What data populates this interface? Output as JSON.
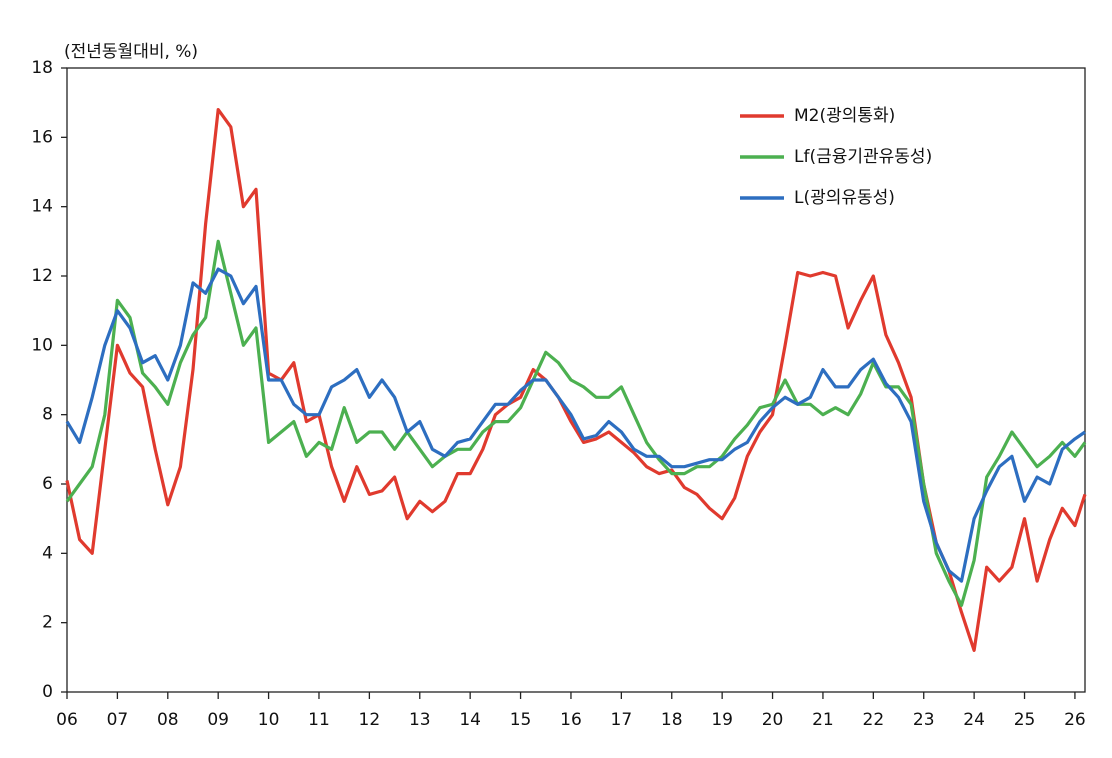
{
  "chart_data": {
    "type": "line",
    "unit_label": "(전년동월대비, %)",
    "x": [
      6,
      6.25,
      6.5,
      6.75,
      7,
      7.25,
      7.5,
      7.75,
      8,
      8.25,
      8.5,
      8.75,
      9,
      9.25,
      9.5,
      9.75,
      10,
      10.25,
      10.5,
      10.75,
      11,
      11.25,
      11.5,
      11.75,
      12,
      12.25,
      12.5,
      12.75,
      13,
      13.25,
      13.5,
      13.75,
      14,
      14.25,
      14.5,
      14.75,
      15,
      15.25,
      15.5,
      15.75,
      16,
      16.25,
      16.5,
      16.75,
      17,
      17.25,
      17.5,
      17.75,
      18,
      18.25,
      18.5,
      18.75,
      19,
      19.25,
      19.5,
      19.75,
      20,
      20.25,
      20.5,
      20.75,
      21,
      21.25,
      21.5,
      21.75,
      22,
      22.25,
      22.5,
      22.75,
      23,
      23.25,
      23.5,
      23.75,
      24,
      24.25,
      24.5,
      24.75,
      25,
      25.25,
      25.5,
      25.75,
      26,
      26.2
    ],
    "series": [
      {
        "name": "M2(광의통화)",
        "color": "#e03a2e",
        "values": [
          6.1,
          4.4,
          4.0,
          7.0,
          10.0,
          9.2,
          8.8,
          7.0,
          5.4,
          6.5,
          9.3,
          13.5,
          16.8,
          16.3,
          14.0,
          14.5,
          9.2,
          9.0,
          9.5,
          7.8,
          8.0,
          6.5,
          5.5,
          6.5,
          5.7,
          5.8,
          6.2,
          5.0,
          5.5,
          5.2,
          5.5,
          6.3,
          6.3,
          7.0,
          8.0,
          8.3,
          8.5,
          9.3,
          9.0,
          8.5,
          7.8,
          7.2,
          7.3,
          7.5,
          7.2,
          6.9,
          6.5,
          6.3,
          6.4,
          5.9,
          5.7,
          5.3,
          5.0,
          5.6,
          6.8,
          7.5,
          8.0,
          10.0,
          12.1,
          12.0,
          12.1,
          12.0,
          10.5,
          11.3,
          12.0,
          10.3,
          9.5,
          8.5,
          6.0,
          4.3,
          3.5,
          2.3,
          1.2,
          3.6,
          3.2,
          3.6,
          5.0,
          3.2,
          4.4,
          5.3,
          4.8,
          5.7
        ]
      },
      {
        "name": "Lf(금융기관유동성)",
        "color": "#4cb050",
        "values": [
          5.5,
          6.0,
          6.5,
          8.0,
          11.3,
          10.8,
          9.2,
          8.8,
          8.3,
          9.5,
          10.3,
          10.8,
          13.0,
          11.5,
          10.0,
          10.5,
          7.2,
          7.5,
          7.8,
          6.8,
          7.2,
          7.0,
          8.2,
          7.2,
          7.5,
          7.5,
          7.0,
          7.5,
          7.0,
          6.5,
          6.8,
          7.0,
          7.0,
          7.5,
          7.8,
          7.8,
          8.2,
          9.0,
          9.8,
          9.5,
          9.0,
          8.8,
          8.5,
          8.5,
          8.8,
          8.0,
          7.2,
          6.7,
          6.3,
          6.3,
          6.5,
          6.5,
          6.8,
          7.3,
          7.7,
          8.2,
          8.3,
          9.0,
          8.3,
          8.3,
          8.0,
          8.2,
          8.0,
          8.6,
          9.5,
          8.8,
          8.8,
          8.3,
          6.0,
          4.0,
          3.2,
          2.5,
          3.8,
          6.2,
          6.8,
          7.5,
          7.0,
          6.5,
          6.8,
          7.2,
          6.8,
          7.2
        ]
      },
      {
        "name": "L(광의유동성)",
        "color": "#2d6ec0",
        "values": [
          7.8,
          7.2,
          8.5,
          10.0,
          11.0,
          10.5,
          9.5,
          9.7,
          9.0,
          10.0,
          11.8,
          11.5,
          12.2,
          12.0,
          11.2,
          11.7,
          9.0,
          9.0,
          8.3,
          8.0,
          8.0,
          8.8,
          9.0,
          9.3,
          8.5,
          9.0,
          8.5,
          7.5,
          7.8,
          7.0,
          6.8,
          7.2,
          7.3,
          7.8,
          8.3,
          8.3,
          8.7,
          9.0,
          9.0,
          8.5,
          8.0,
          7.3,
          7.4,
          7.8,
          7.5,
          7.0,
          6.8,
          6.8,
          6.5,
          6.5,
          6.6,
          6.7,
          6.7,
          7.0,
          7.2,
          7.8,
          8.2,
          8.5,
          8.3,
          8.5,
          9.3,
          8.8,
          8.8,
          9.3,
          9.6,
          8.9,
          8.5,
          7.8,
          5.5,
          4.3,
          3.5,
          3.2,
          5.0,
          5.8,
          6.5,
          6.8,
          5.5,
          6.2,
          6.0,
          7.0,
          7.3,
          7.5
        ]
      }
    ],
    "xlim": [
      6,
      26.2
    ],
    "xticks": [
      {
        "value": 6,
        "label": "06"
      },
      {
        "value": 7,
        "label": "07"
      },
      {
        "value": 8,
        "label": "08"
      },
      {
        "value": 9,
        "label": "09"
      },
      10,
      11,
      12,
      13,
      14,
      15,
      16,
      17,
      18,
      19,
      20,
      21,
      22,
      23,
      24,
      25,
      26
    ],
    "ylim": [
      0,
      18
    ],
    "yticks": [
      0,
      2,
      4,
      6,
      8,
      10,
      12,
      14,
      16,
      18
    ],
    "legend": "upper-right"
  }
}
